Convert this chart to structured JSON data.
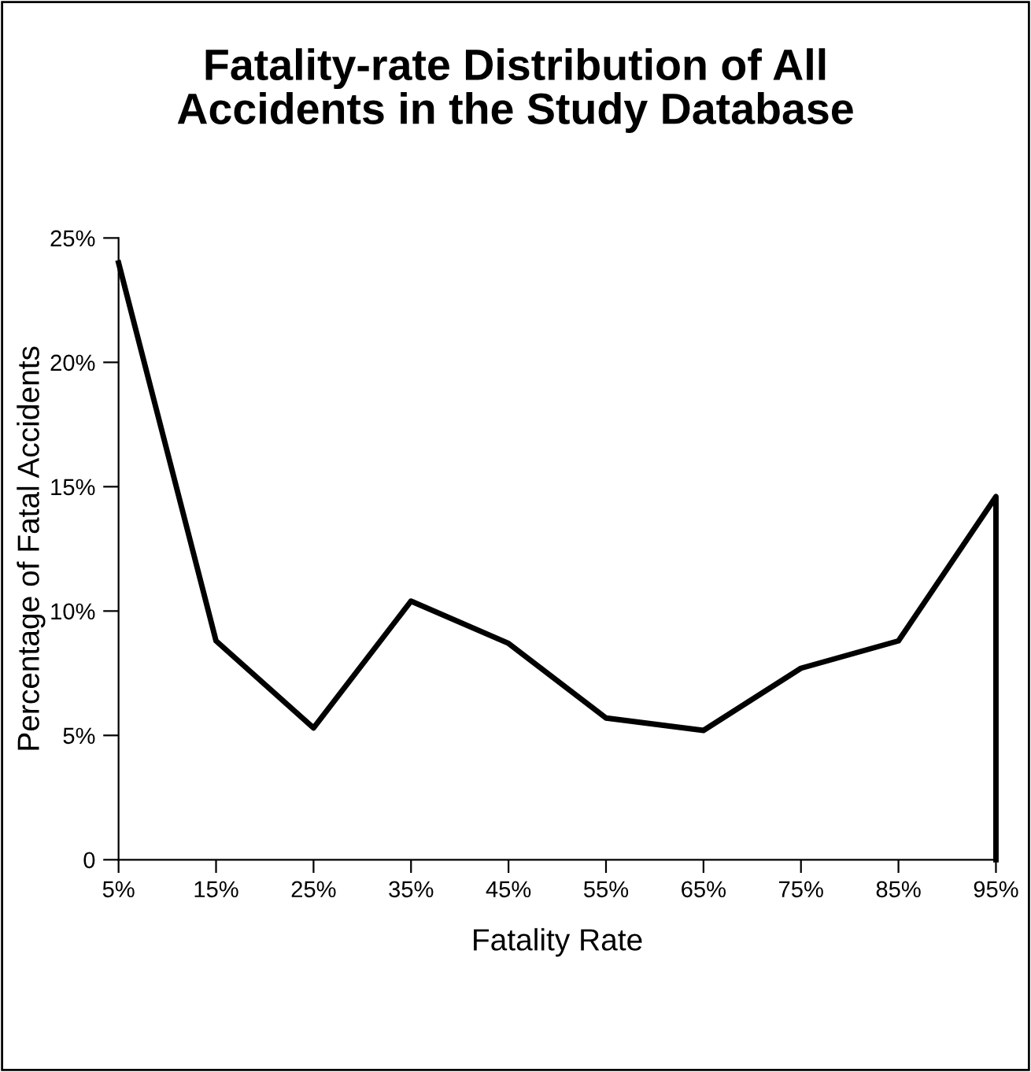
{
  "chart_data": {
    "type": "line",
    "title": "Fatality-rate Distribution of All\nAccidents in the Study Database",
    "xlabel": "Fatality Rate",
    "ylabel": "Percentage of Fatal Accidents",
    "series": [
      {
        "color": "#000000",
        "x": [
          5,
          15,
          25,
          35,
          45,
          55,
          65,
          75,
          85,
          95,
          95
        ],
        "values": [
          24.0,
          8.8,
          5.3,
          10.4,
          8.7,
          5.7,
          5.2,
          7.7,
          8.8,
          14.6,
          0
        ]
      }
    ],
    "xlim": [
      5,
      95
    ],
    "xticks": [
      {
        "value": 5,
        "label": "5%"
      },
      {
        "value": 15,
        "label": "15%"
      },
      {
        "value": 25,
        "label": "25%"
      },
      {
        "value": 35,
        "label": "35%"
      },
      {
        "value": 45,
        "label": "45%"
      },
      {
        "value": 55,
        "label": "55%"
      },
      {
        "value": 65,
        "label": "65%"
      },
      {
        "value": 75,
        "label": "75%"
      },
      {
        "value": 85,
        "label": "85%"
      },
      {
        "value": 95,
        "label": "95%"
      }
    ],
    "ylim": [
      0,
      25
    ],
    "yticks": [
      0,
      {
        "value": 5,
        "label": "5%"
      },
      {
        "value": 10,
        "label": "10%"
      },
      {
        "value": 15,
        "label": "15%"
      },
      {
        "value": 20,
        "label": "20%"
      },
      {
        "value": 25,
        "label": "25%"
      }
    ],
    "grid": false,
    "legend": false,
    "marker": "none",
    "line_style": "solid"
  }
}
